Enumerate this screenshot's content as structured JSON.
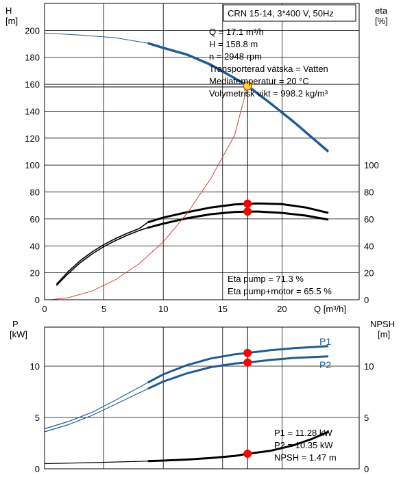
{
  "chart_data": [
    {
      "type": "line",
      "title": "CRN 15-14, 3*400 V, 50Hz",
      "xlabel": "Q [m³/h]",
      "xlim": [
        0,
        26.5
      ],
      "x_ticks": [
        0,
        5,
        10,
        15,
        20
      ],
      "ylabel_left": [
        "H",
        "[m]"
      ],
      "ylabel_right": [
        "eta",
        "[%]"
      ],
      "ylim": [
        0,
        220
      ],
      "y_ticks_left": [
        0,
        20,
        40,
        60,
        80,
        100,
        120,
        140,
        160,
        180,
        200
      ],
      "y_ticks_right": [
        0,
        20,
        40,
        60,
        80,
        100
      ],
      "grid": true,
      "info_lines": [
        "Q = 17.1 m³/h",
        "H = 158.8 m",
        "n = 2948 rpm",
        "Transporterad vätska = Vatten",
        "Mediatemperatur = 20 °C",
        "Volymetrisk vikt = 998.2 kg/m³"
      ],
      "eta_lines": [
        "Eta pump = 71.3 %",
        "Eta pump+motor = 65.5 %"
      ],
      "operating_point": {
        "q": 17.1,
        "h": 158.8
      },
      "series": [
        {
          "key": "h_curve",
          "color": "#1f5a96",
          "x": [
            0,
            3,
            6,
            8.7,
            10,
            12,
            14,
            16,
            17.1,
            19,
            21,
            23.9
          ],
          "y": [
            198,
            196.5,
            194.5,
            190.5,
            187,
            182,
            174.5,
            164.5,
            158.8,
            146,
            132,
            110
          ],
          "bold_from": 8.7
        },
        {
          "key": "eta_pump",
          "color": "#000000",
          "x": [
            1,
            2,
            3,
            4,
            5,
            6,
            7,
            8,
            8.7,
            10,
            12,
            14,
            16,
            17.1,
            18,
            20,
            22,
            23.9
          ],
          "y": [
            11.5,
            21,
            29,
            35.5,
            41,
            45.5,
            49.5,
            53,
            57.5,
            61,
            65,
            68.5,
            70.8,
            71.3,
            71.5,
            71,
            68.5,
            64.5
          ],
          "bold_from": 8.7
        },
        {
          "key": "eta_pump_motor",
          "color": "#000000",
          "x": [
            1,
            2,
            3,
            4,
            5,
            6,
            7,
            8,
            8.7,
            10,
            12,
            14,
            16,
            17.1,
            18,
            20,
            22,
            23.9
          ],
          "y": [
            10.5,
            19.5,
            27.5,
            34,
            39.5,
            44,
            48,
            51.5,
            53.5,
            56.5,
            60.5,
            63.5,
            65.2,
            65.5,
            65.5,
            64.5,
            62.5,
            59.5
          ],
          "bold_from": 8.7
        },
        {
          "key": "system_curve",
          "color": "#d94040",
          "x": [
            0.5,
            2,
            4,
            6,
            8,
            10,
            12,
            14,
            16,
            17.1
          ],
          "y": [
            0,
            1.5,
            6.5,
            15,
            27,
            43,
            64,
            90,
            122,
            158.8
          ],
          "bold_from": null
        }
      ],
      "markers": [
        {
          "x": 17.1,
          "y": 158.8,
          "fill": "#f2e022"
        },
        {
          "x": 17.1,
          "y": 71.3,
          "fill": "#ff0000"
        },
        {
          "x": 17.1,
          "y": 65.5,
          "fill": "#ff0000"
        }
      ]
    },
    {
      "type": "line",
      "ylabel_left": [
        "P",
        "[kW]"
      ],
      "ylabel_right": [
        "NPSH",
        "[m]"
      ],
      "xlim": [
        0,
        26.5
      ],
      "ylim": [
        0,
        13.8
      ],
      "y_ticks_left": [
        0,
        5,
        10
      ],
      "y_ticks_right": [
        0,
        5,
        10
      ],
      "grid": true,
      "legend": [
        "P1",
        "P2"
      ],
      "power_lines": [
        "P1 = 11.28 kW",
        "P2 = 10.35 kW",
        "NPSH = 1.47 m"
      ],
      "series": [
        {
          "key": "p1",
          "name": "P1",
          "color": "#1f5a96",
          "x": [
            0,
            2,
            4,
            6,
            8.7,
            10,
            12,
            14,
            16,
            17.1,
            19,
            21,
            23.9
          ],
          "y": [
            3.9,
            4.6,
            5.5,
            6.7,
            8.4,
            9.2,
            10.1,
            10.75,
            11.15,
            11.28,
            11.55,
            11.75,
            11.95
          ],
          "bold_from": 8.7
        },
        {
          "key": "p2",
          "name": "P2",
          "color": "#1f5a96",
          "x": [
            0,
            2,
            4,
            6,
            8.7,
            10,
            12,
            14,
            16,
            17.1,
            19,
            21,
            23.9
          ],
          "y": [
            3.6,
            4.3,
            5.2,
            6.3,
            7.8,
            8.5,
            9.3,
            9.9,
            10.25,
            10.35,
            10.6,
            10.8,
            10.95
          ],
          "bold_from": 8.7
        },
        {
          "key": "npsh",
          "name": "NPSH",
          "color": "#000000",
          "x": [
            0,
            4,
            8.7,
            10,
            12,
            14,
            16,
            17.1,
            19,
            21,
            22.5,
            23.9
          ],
          "y": [
            0.5,
            0.6,
            0.75,
            0.8,
            0.9,
            1.05,
            1.25,
            1.47,
            1.75,
            2.3,
            2.9,
            3.6
          ],
          "bold_from": 8.7
        }
      ],
      "markers": [
        {
          "x": 17.1,
          "y": 11.28,
          "fill": "#ff0000"
        },
        {
          "x": 17.1,
          "y": 10.35,
          "fill": "#ff0000"
        },
        {
          "x": 17.1,
          "y": 1.47,
          "fill": "#ff0000"
        }
      ]
    }
  ]
}
